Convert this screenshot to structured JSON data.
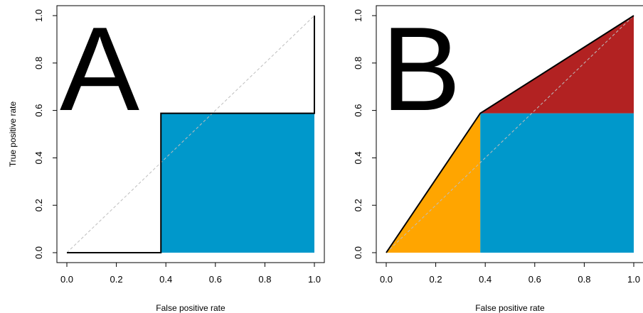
{
  "chart_data": [
    {
      "type": "line",
      "panel_label": "A",
      "xlabel": "",
      "ylabel": "True positive rate",
      "xlim": [
        0,
        1
      ],
      "ylim": [
        0,
        1
      ],
      "xticks": [
        "0.0",
        "0.2",
        "0.4",
        "0.6",
        "0.8",
        "1.0"
      ],
      "yticks": [
        "0.0",
        "0.2",
        "0.4",
        "0.6",
        "0.8",
        "1.0"
      ],
      "grid": false,
      "series": [
        {
          "role": "roc-curve",
          "style": "step",
          "x": [
            0,
            0.38,
            0.38,
            1,
            1
          ],
          "y": [
            0,
            0,
            0.588,
            0.588,
            1
          ]
        },
        {
          "role": "chance-diagonal",
          "style": "dashed",
          "x": [
            0,
            1
          ],
          "y": [
            0,
            1
          ]
        }
      ],
      "shaded_regions": [
        {
          "color": "#0098cb",
          "x": [
            0.38,
            1,
            1,
            0.38
          ],
          "y": [
            0,
            0,
            0.588,
            0.588
          ]
        }
      ]
    },
    {
      "type": "line",
      "panel_label": "B",
      "xlabel": "",
      "ylabel": "",
      "xlim": [
        0,
        1
      ],
      "ylim": [
        0,
        1
      ],
      "xticks": [
        "0.0",
        "0.2",
        "0.4",
        "0.6",
        "0.8",
        "1.0"
      ],
      "yticks": [
        "0.0",
        "0.2",
        "0.4",
        "0.6",
        "0.8",
        "1.0"
      ],
      "grid": false,
      "series": [
        {
          "role": "roc-curve",
          "style": "solid",
          "x": [
            0,
            0.38,
            1
          ],
          "y": [
            0,
            0.588,
            1
          ]
        },
        {
          "role": "chance-diagonal",
          "style": "dashed",
          "x": [
            0,
            1
          ],
          "y": [
            0,
            1
          ]
        }
      ],
      "shaded_regions": [
        {
          "color": "#ffa500",
          "x": [
            0,
            0.38,
            0.38
          ],
          "y": [
            0,
            0.588,
            0
          ]
        },
        {
          "color": "#0098cb",
          "x": [
            0.38,
            1,
            1,
            0.38
          ],
          "y": [
            0,
            0,
            0.588,
            0.588
          ]
        },
        {
          "color": "#b22222",
          "x": [
            0.38,
            1,
            1
          ],
          "y": [
            0.588,
            1,
            0.588
          ]
        }
      ]
    }
  ],
  "axis_titles": {
    "x": "False positive rate",
    "y": "True positive rate"
  },
  "colors": {
    "curve": "#000000",
    "diagonal": "#bebebe",
    "frame": "#000000"
  }
}
